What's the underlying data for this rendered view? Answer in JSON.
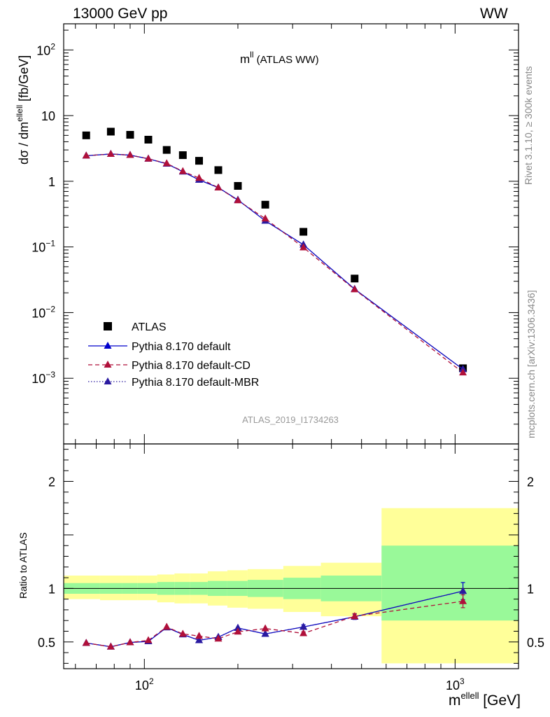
{
  "header": {
    "energy_label": "13000 GeV pp",
    "process_label": "WW"
  },
  "side_labels": {
    "rivet": "Rivet 3.1.10, ≥ 300k events",
    "mcplots": "mcplots.cern.ch [arXiv:1306.3436]"
  },
  "analysis_id": "ATLAS_2019_I1734263",
  "chart_data": [
    {
      "type": "scatter",
      "title": "m",
      "title_sup": "ll",
      "title_suffix": " (ATLAS WW)",
      "ylabel": "dσ / dm",
      "ylabel_sup": "ellell",
      "ylabel_unit": " [fb/GeV]",
      "xscale": "log",
      "yscale": "log",
      "xlim": [
        55,
        1600
      ],
      "ylim": [
        0.0001,
        250
      ],
      "yticks": [
        {
          "v": 100,
          "base": "10",
          "exp": "2"
        },
        {
          "v": 10,
          "base": "10",
          "exp": ""
        },
        {
          "v": 1,
          "base": "1",
          "exp": ""
        },
        {
          "v": 0.1,
          "base": "10",
          "exp": "−1"
        },
        {
          "v": 0.01,
          "base": "10",
          "exp": "−2"
        },
        {
          "v": 0.001,
          "base": "10",
          "exp": "−3"
        }
      ],
      "legend_position": "bottom-left",
      "x": [
        65,
        78,
        90,
        103,
        118,
        133,
        150,
        173,
        200,
        245,
        325,
        475,
        1060
      ],
      "series": [
        {
          "name": "ATLAS",
          "color": "#000000",
          "marker": "square",
          "values": [
            5.0,
            5.7,
            5.1,
            4.3,
            3.0,
            2.5,
            2.05,
            1.48,
            0.85,
            0.44,
            0.17,
            0.033,
            0.00142
          ]
        },
        {
          "name": "Pythia 8.170 default",
          "color": "#0000cc",
          "marker": "triangle",
          "line": "solid",
          "values": [
            2.45,
            2.6,
            2.5,
            2.2,
            1.85,
            1.4,
            1.05,
            0.8,
            0.52,
            0.25,
            0.108,
            0.0228,
            0.00137
          ]
        },
        {
          "name": "Pythia 8.170 default-CD",
          "color": "#b0103a",
          "marker": "triangle",
          "line": "dashed",
          "values": [
            2.45,
            2.6,
            2.5,
            2.2,
            1.87,
            1.42,
            1.12,
            0.8,
            0.51,
            0.27,
            0.098,
            0.0225,
            0.00122
          ]
        },
        {
          "name": "Pythia 8.170 default-MBR",
          "color": "#2a1aa0",
          "marker": "triangle",
          "line": "dotted",
          "values": [
            2.45,
            2.6,
            2.5,
            2.2,
            1.85,
            1.4,
            1.05,
            0.8,
            0.52,
            0.25,
            0.108,
            0.0228,
            0.00137
          ]
        }
      ]
    },
    {
      "type": "scatter",
      "ylabel": "Ratio to ATLAS",
      "xlabel": "m",
      "xlabel_sup": "ellell",
      "xlabel_unit": " [GeV]",
      "xscale": "log",
      "xlim": [
        55,
        1600
      ],
      "ylim": [
        0.25,
        2.35
      ],
      "yticks": [
        0.5,
        1,
        2
      ],
      "xticks": [
        {
          "v": 100,
          "base": "10",
          "exp": "2"
        },
        {
          "v": 1000,
          "base": "10",
          "exp": "3"
        }
      ],
      "bands": {
        "bin_edges": [
          55,
          72,
          85,
          95,
          110,
          125,
          140,
          160,
          185,
          215,
          280,
          370,
          580,
          1600
        ],
        "green_lo": [
          0.95,
          0.95,
          0.95,
          0.95,
          0.94,
          0.94,
          0.94,
          0.93,
          0.93,
          0.92,
          0.9,
          0.88,
          0.7
        ],
        "green_hi": [
          1.05,
          1.05,
          1.05,
          1.05,
          1.06,
          1.06,
          1.06,
          1.07,
          1.07,
          1.08,
          1.1,
          1.12,
          1.4
        ],
        "yellow_lo": [
          0.9,
          0.89,
          0.89,
          0.89,
          0.87,
          0.86,
          0.86,
          0.84,
          0.82,
          0.81,
          0.78,
          0.74,
          0.3
        ],
        "yellow_hi": [
          1.12,
          1.12,
          1.12,
          1.12,
          1.13,
          1.14,
          1.14,
          1.16,
          1.17,
          1.18,
          1.21,
          1.24,
          1.75
        ],
        "green_color": "#99f999",
        "yellow_color": "#ffff99"
      },
      "x": [
        65,
        78,
        90,
        103,
        118,
        133,
        150,
        173,
        200,
        245,
        325,
        475,
        1060
      ],
      "series": [
        {
          "name": "Pythia 8.170 default",
          "color": "#0000cc",
          "marker": "triangle",
          "line": "solid",
          "values": [
            0.49,
            0.455,
            0.495,
            0.505,
            0.635,
            0.57,
            0.515,
            0.545,
            0.63,
            0.575,
            0.64,
            0.735,
            0.975
          ],
          "errors": [
            0,
            0,
            0,
            0,
            0,
            0,
            0,
            0,
            0,
            0,
            0.02,
            0.025,
            0.08
          ]
        },
        {
          "name": "Pythia 8.170 default-CD",
          "color": "#b0103a",
          "marker": "triangle",
          "line": "dashed",
          "values": [
            0.49,
            0.455,
            0.495,
            0.515,
            0.64,
            0.575,
            0.555,
            0.53,
            0.595,
            0.625,
            0.58,
            0.74,
            0.88
          ],
          "errors": [
            0,
            0,
            0,
            0,
            0,
            0,
            0,
            0,
            0,
            0,
            0.015,
            0.025,
            0.06
          ]
        },
        {
          "name": "Pythia 8.170 default-MBR",
          "color": "#2a1aa0",
          "marker": "triangle",
          "line": "dotted",
          "values": [
            0.49,
            0.455,
            0.495,
            0.505,
            0.635,
            0.57,
            0.515,
            0.545,
            0.63,
            0.575,
            0.64,
            0.735,
            0.975
          ],
          "errors": [
            0,
            0,
            0,
            0,
            0,
            0,
            0,
            0,
            0,
            0,
            0,
            0,
            0
          ]
        }
      ]
    }
  ]
}
